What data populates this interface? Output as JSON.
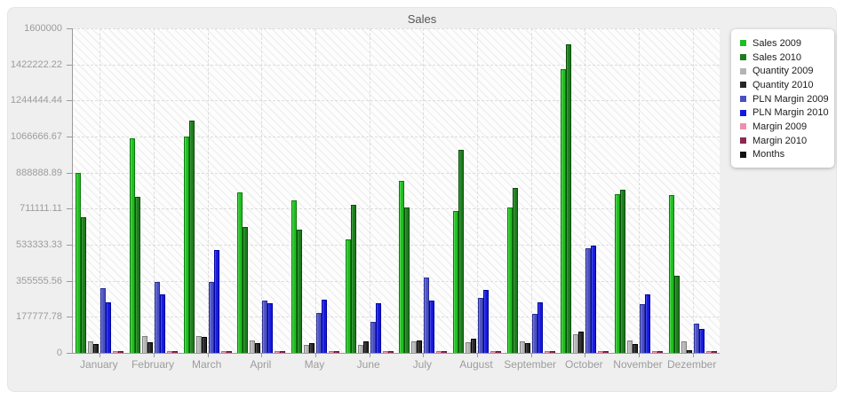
{
  "chart_data": {
    "type": "bar",
    "title": "Sales",
    "xlabel": "",
    "ylabel": "",
    "ylim": [
      0,
      1600000
    ],
    "grid": "dashed horizontal lines at each y tick and dashed vertical lines at each month center",
    "legend_position": "top-right",
    "plot_background": "white with light diagonal hatch",
    "axis_color": "#9a9a9a",
    "label_color": "#9c9c9c",
    "y_ticks": [
      "1600000",
      "1422222.22",
      "1244444.44",
      "1066666.67",
      "888888.89",
      "711111.11",
      "533333.33",
      "355555.56",
      "177777.78",
      "0"
    ],
    "categories": [
      "January",
      "February",
      "March",
      "April",
      "May",
      "June",
      "July",
      "August",
      "September",
      "October",
      "November",
      "Dezember"
    ],
    "series": [
      {
        "name": "Sales 2009",
        "color": "#1fbe1f",
        "color_light": "#63e063",
        "color_border": "#0c7a0c",
        "values": [
          887000,
          1058000,
          1065000,
          791000,
          752000,
          558000,
          850000,
          698000,
          715000,
          1400000,
          781000,
          777000
        ]
      },
      {
        "name": "Sales 2010",
        "color": "#1e7a1e",
        "color_light": "#46a546",
        "color_border": "#0a4d0a",
        "values": [
          669000,
          770000,
          1144000,
          622000,
          609000,
          730000,
          718000,
          1002000,
          815000,
          1520000,
          803000,
          380000
        ]
      },
      {
        "name": "Quantity 2009",
        "color": "#b4b4b4",
        "color_light": "#d6d6d6",
        "color_border": "#7f7f7f",
        "values": [
          58000,
          83000,
          82000,
          60000,
          41000,
          38000,
          57000,
          52000,
          57000,
          92000,
          62000,
          55000
        ]
      },
      {
        "name": "Quantity 2010",
        "color": "#262626",
        "color_light": "#5a5a5a",
        "color_border": "#000000",
        "values": [
          42000,
          52000,
          77000,
          48000,
          49000,
          57000,
          60000,
          72000,
          49000,
          104000,
          45000,
          15000
        ]
      },
      {
        "name": "PLN Margin 2009",
        "color": "#4a50c3",
        "color_light": "#8287dd",
        "color_border": "#2a2f96",
        "values": [
          320000,
          350000,
          350000,
          256000,
          198000,
          152000,
          372000,
          270000,
          192000,
          515000,
          240000,
          145000
        ]
      },
      {
        "name": "PLN Margin 2010",
        "color": "#1518dc",
        "color_light": "#5357ee",
        "color_border": "#0004a0",
        "values": [
          250000,
          290000,
          505000,
          246000,
          262000,
          245000,
          258000,
          310000,
          250000,
          528000,
          287000,
          118000
        ]
      },
      {
        "name": "Margin 2009",
        "color": "#ef8fb0",
        "color_light": "#f7b4cb",
        "color_border": "#c75d87",
        "values": [
          8000,
          8000,
          8000,
          8000,
          8000,
          8000,
          8000,
          8000,
          8000,
          8000,
          8000,
          8000
        ]
      },
      {
        "name": "Margin 2010",
        "color": "#8c2950",
        "color_light": "#a84a6e",
        "color_border": "#5d1533",
        "values": [
          8000,
          8000,
          8000,
          8000,
          8000,
          8000,
          8000,
          8000,
          8000,
          8000,
          8000,
          8000
        ]
      },
      {
        "name": "Months",
        "color": "#111111",
        "color_light": "#111111",
        "color_border": "#111111",
        "values": null
      }
    ]
  }
}
